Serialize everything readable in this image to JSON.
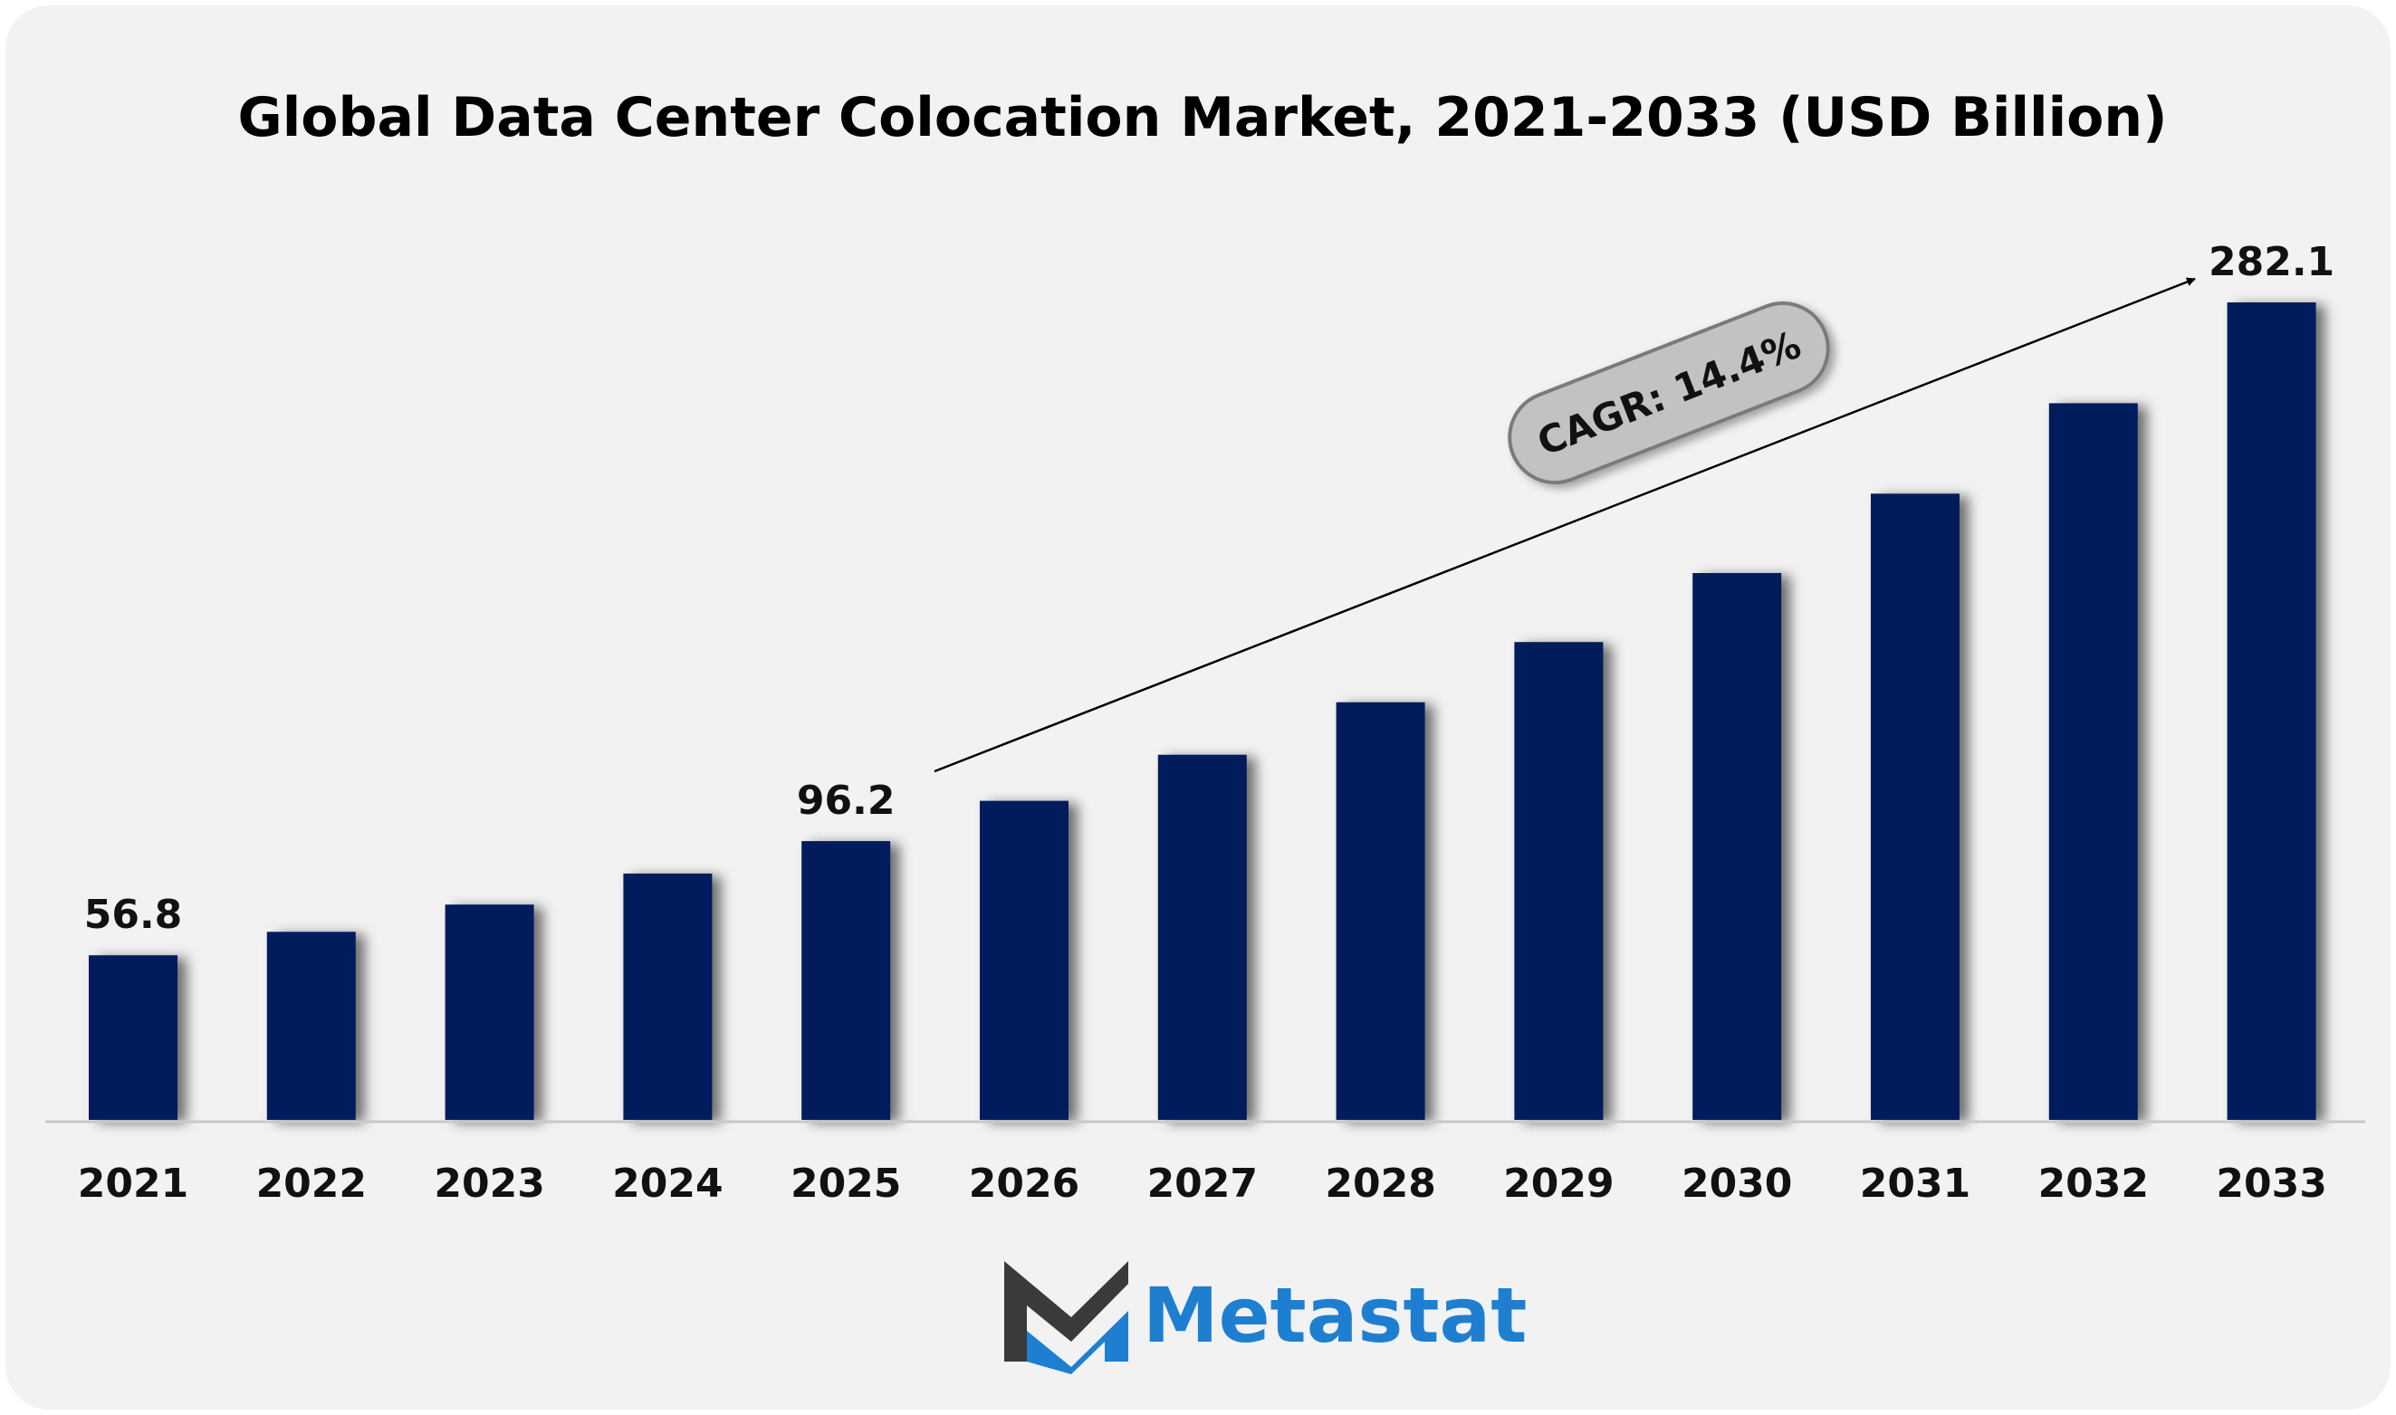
{
  "chart_data": {
    "type": "bar",
    "title": "Global Data Center Colocation Market, 2021-2033 (USD Billion)",
    "categories": [
      "2021",
      "2022",
      "2023",
      "2024",
      "2025",
      "2026",
      "2027",
      "2028",
      "2029",
      "2030",
      "2031",
      "2032",
      "2033"
    ],
    "values": [
      56.8,
      64.9,
      74.3,
      85.0,
      96.2,
      110.1,
      126.0,
      144.1,
      164.9,
      188.7,
      216.1,
      247.3,
      282.1
    ],
    "data_labels": [
      {
        "category": "2021",
        "text": "56.8"
      },
      {
        "category": "2025",
        "text": "96.2"
      },
      {
        "category": "2033",
        "text": "282.1"
      }
    ],
    "annotation": "CAGR: 14.4%",
    "ylim": [
      0,
      282.1
    ],
    "grid": false,
    "bar_color": "#021e5c"
  },
  "brand": {
    "name": "Metastat",
    "color": "#1e7fd1",
    "icon": "metastat-m-logo"
  }
}
